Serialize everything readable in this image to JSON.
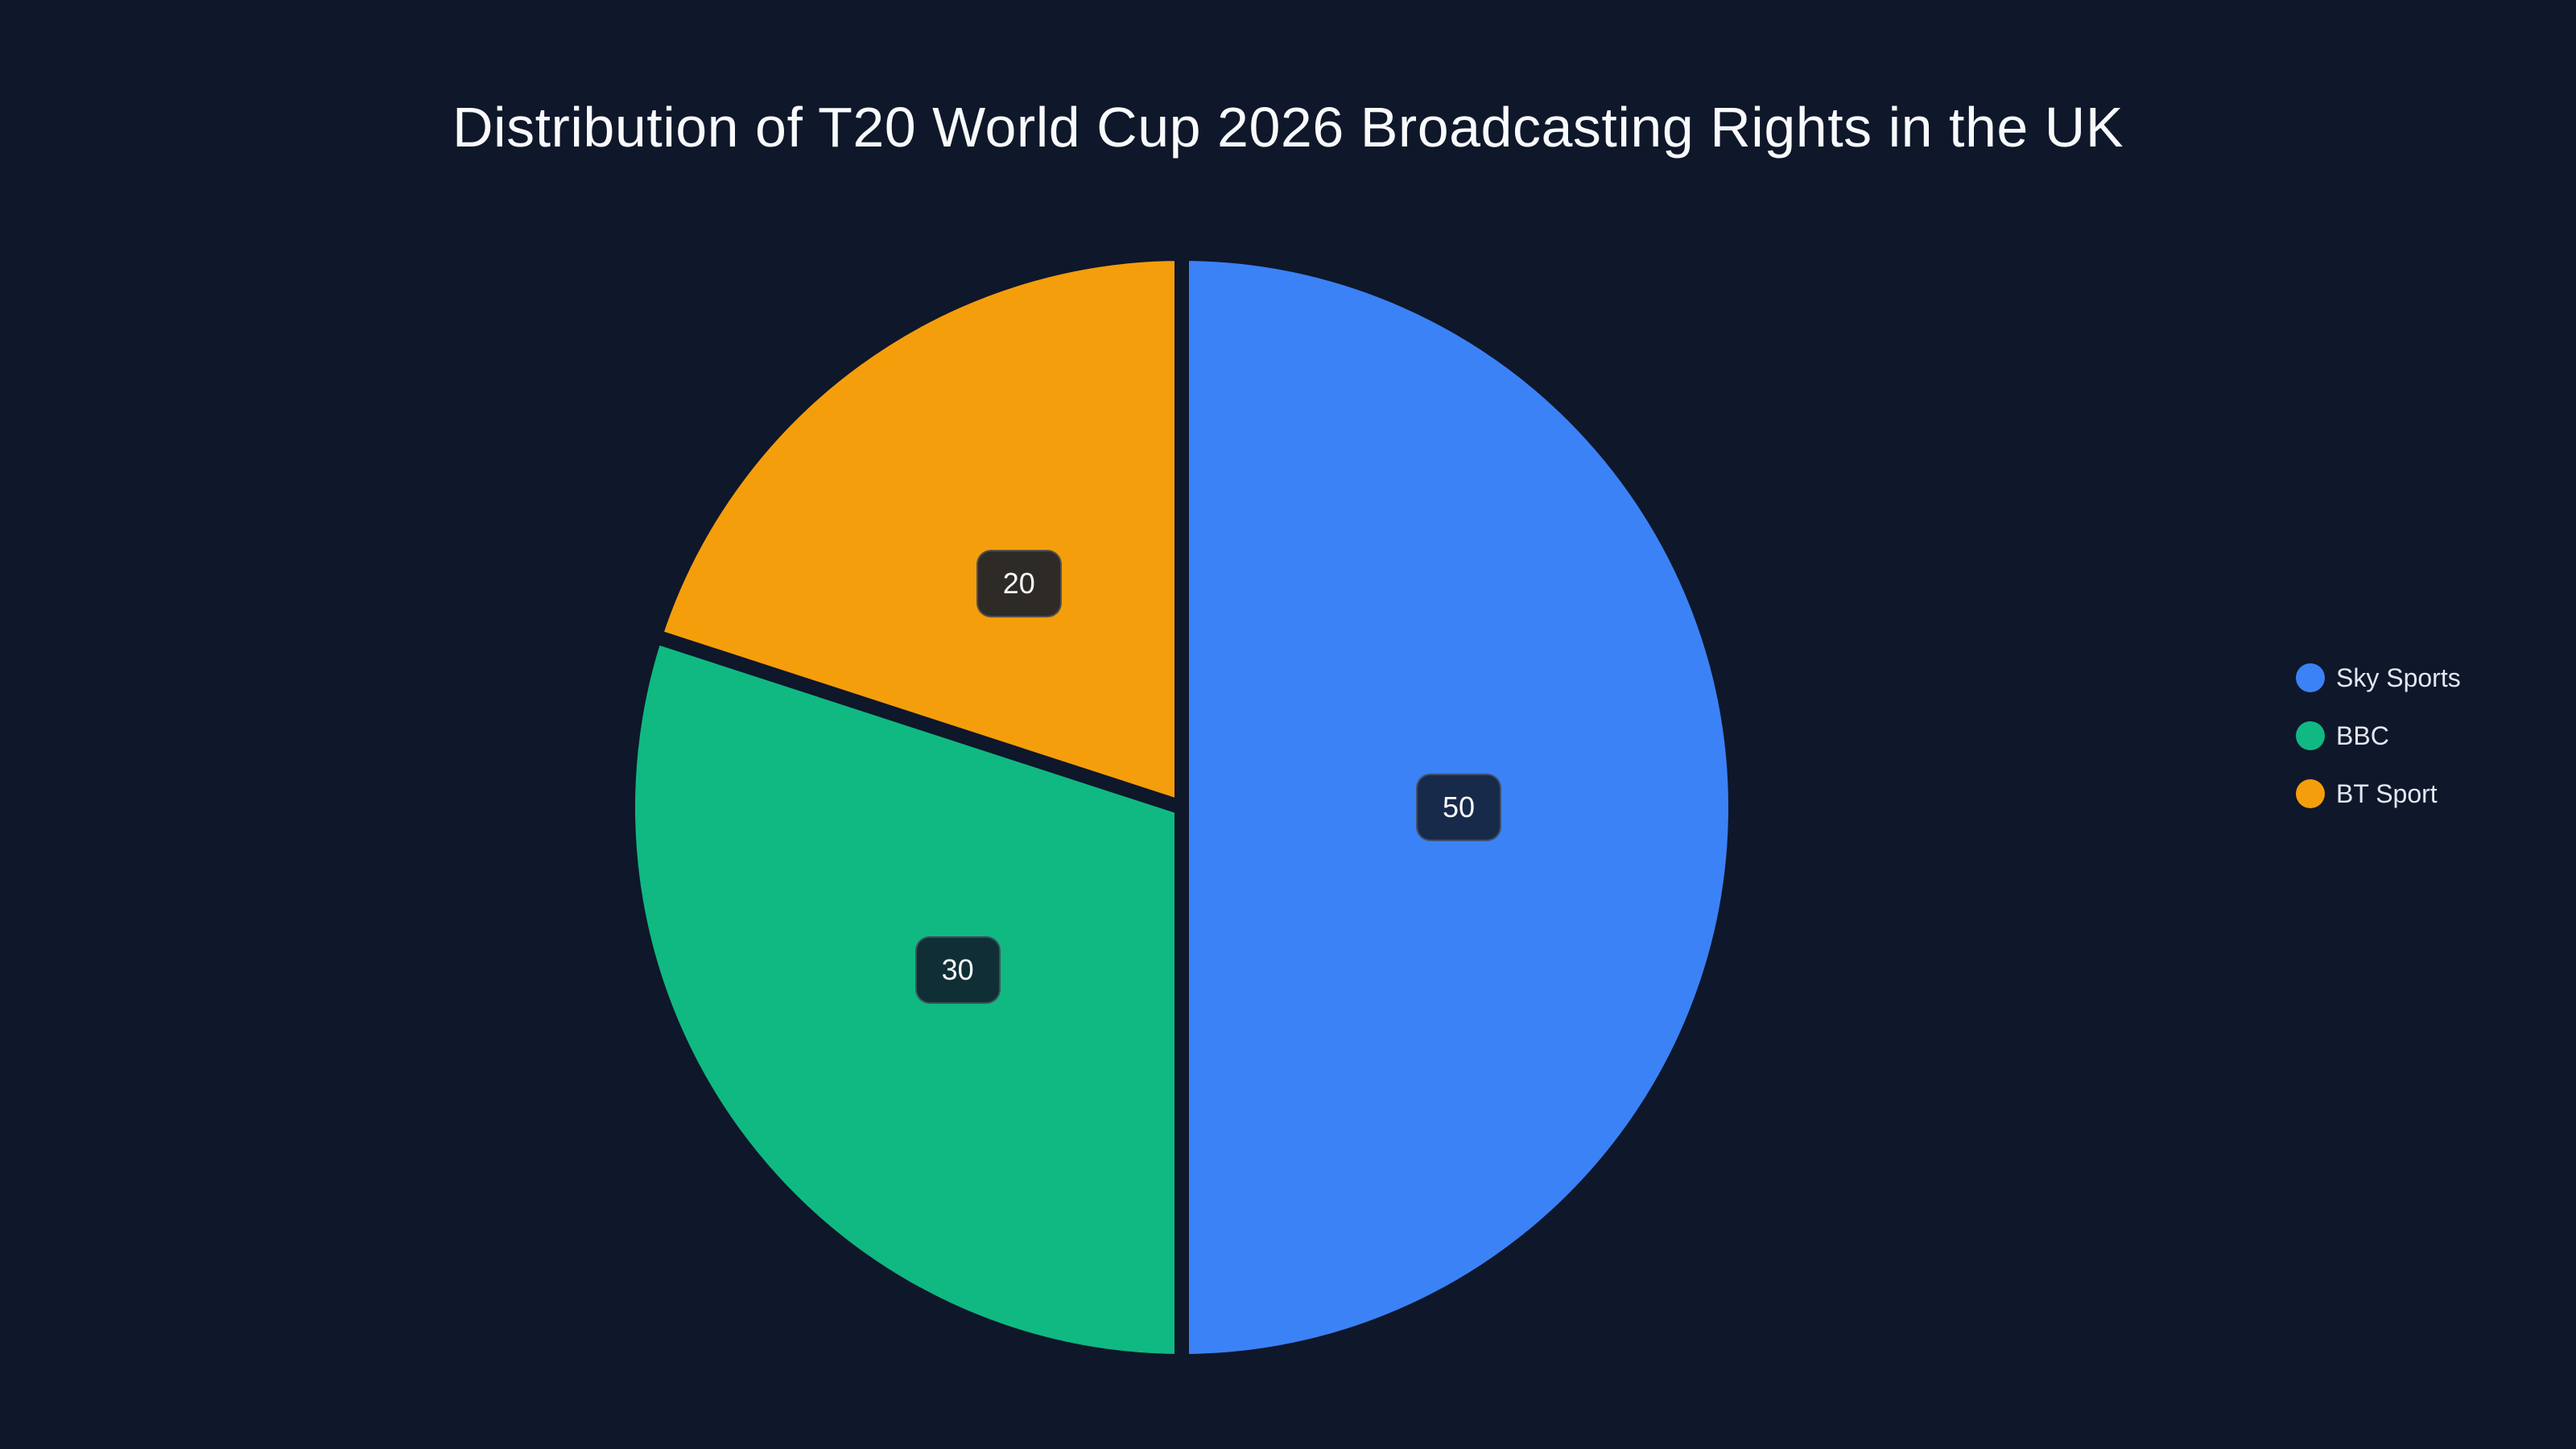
{
  "title": "Distribution of T20 World Cup 2026 Broadcasting Rights in the UK",
  "chart_data": {
    "type": "pie",
    "title": "Distribution of T20 World Cup 2026 Broadcasting Rights in the UK",
    "categories": [
      "Sky Sports",
      "BBC",
      "BT Sport"
    ],
    "values": [
      50,
      30,
      20
    ],
    "colors": [
      "#3b82f6",
      "#10b981",
      "#f59e0b"
    ],
    "legend_position": "right",
    "data_labels": [
      "50",
      "30",
      "20"
    ],
    "label_box_colors": [
      "#172a4a",
      "#0f2e36",
      "#2e2a25"
    ]
  },
  "legend": {
    "items": [
      {
        "label": "Sky Sports",
        "color": "#3b82f6"
      },
      {
        "label": "BBC",
        "color": "#10b981"
      },
      {
        "label": "BT Sport",
        "color": "#f59e0b"
      }
    ]
  },
  "labels": {
    "sky": "50",
    "bbc": "30",
    "bt": "20"
  }
}
